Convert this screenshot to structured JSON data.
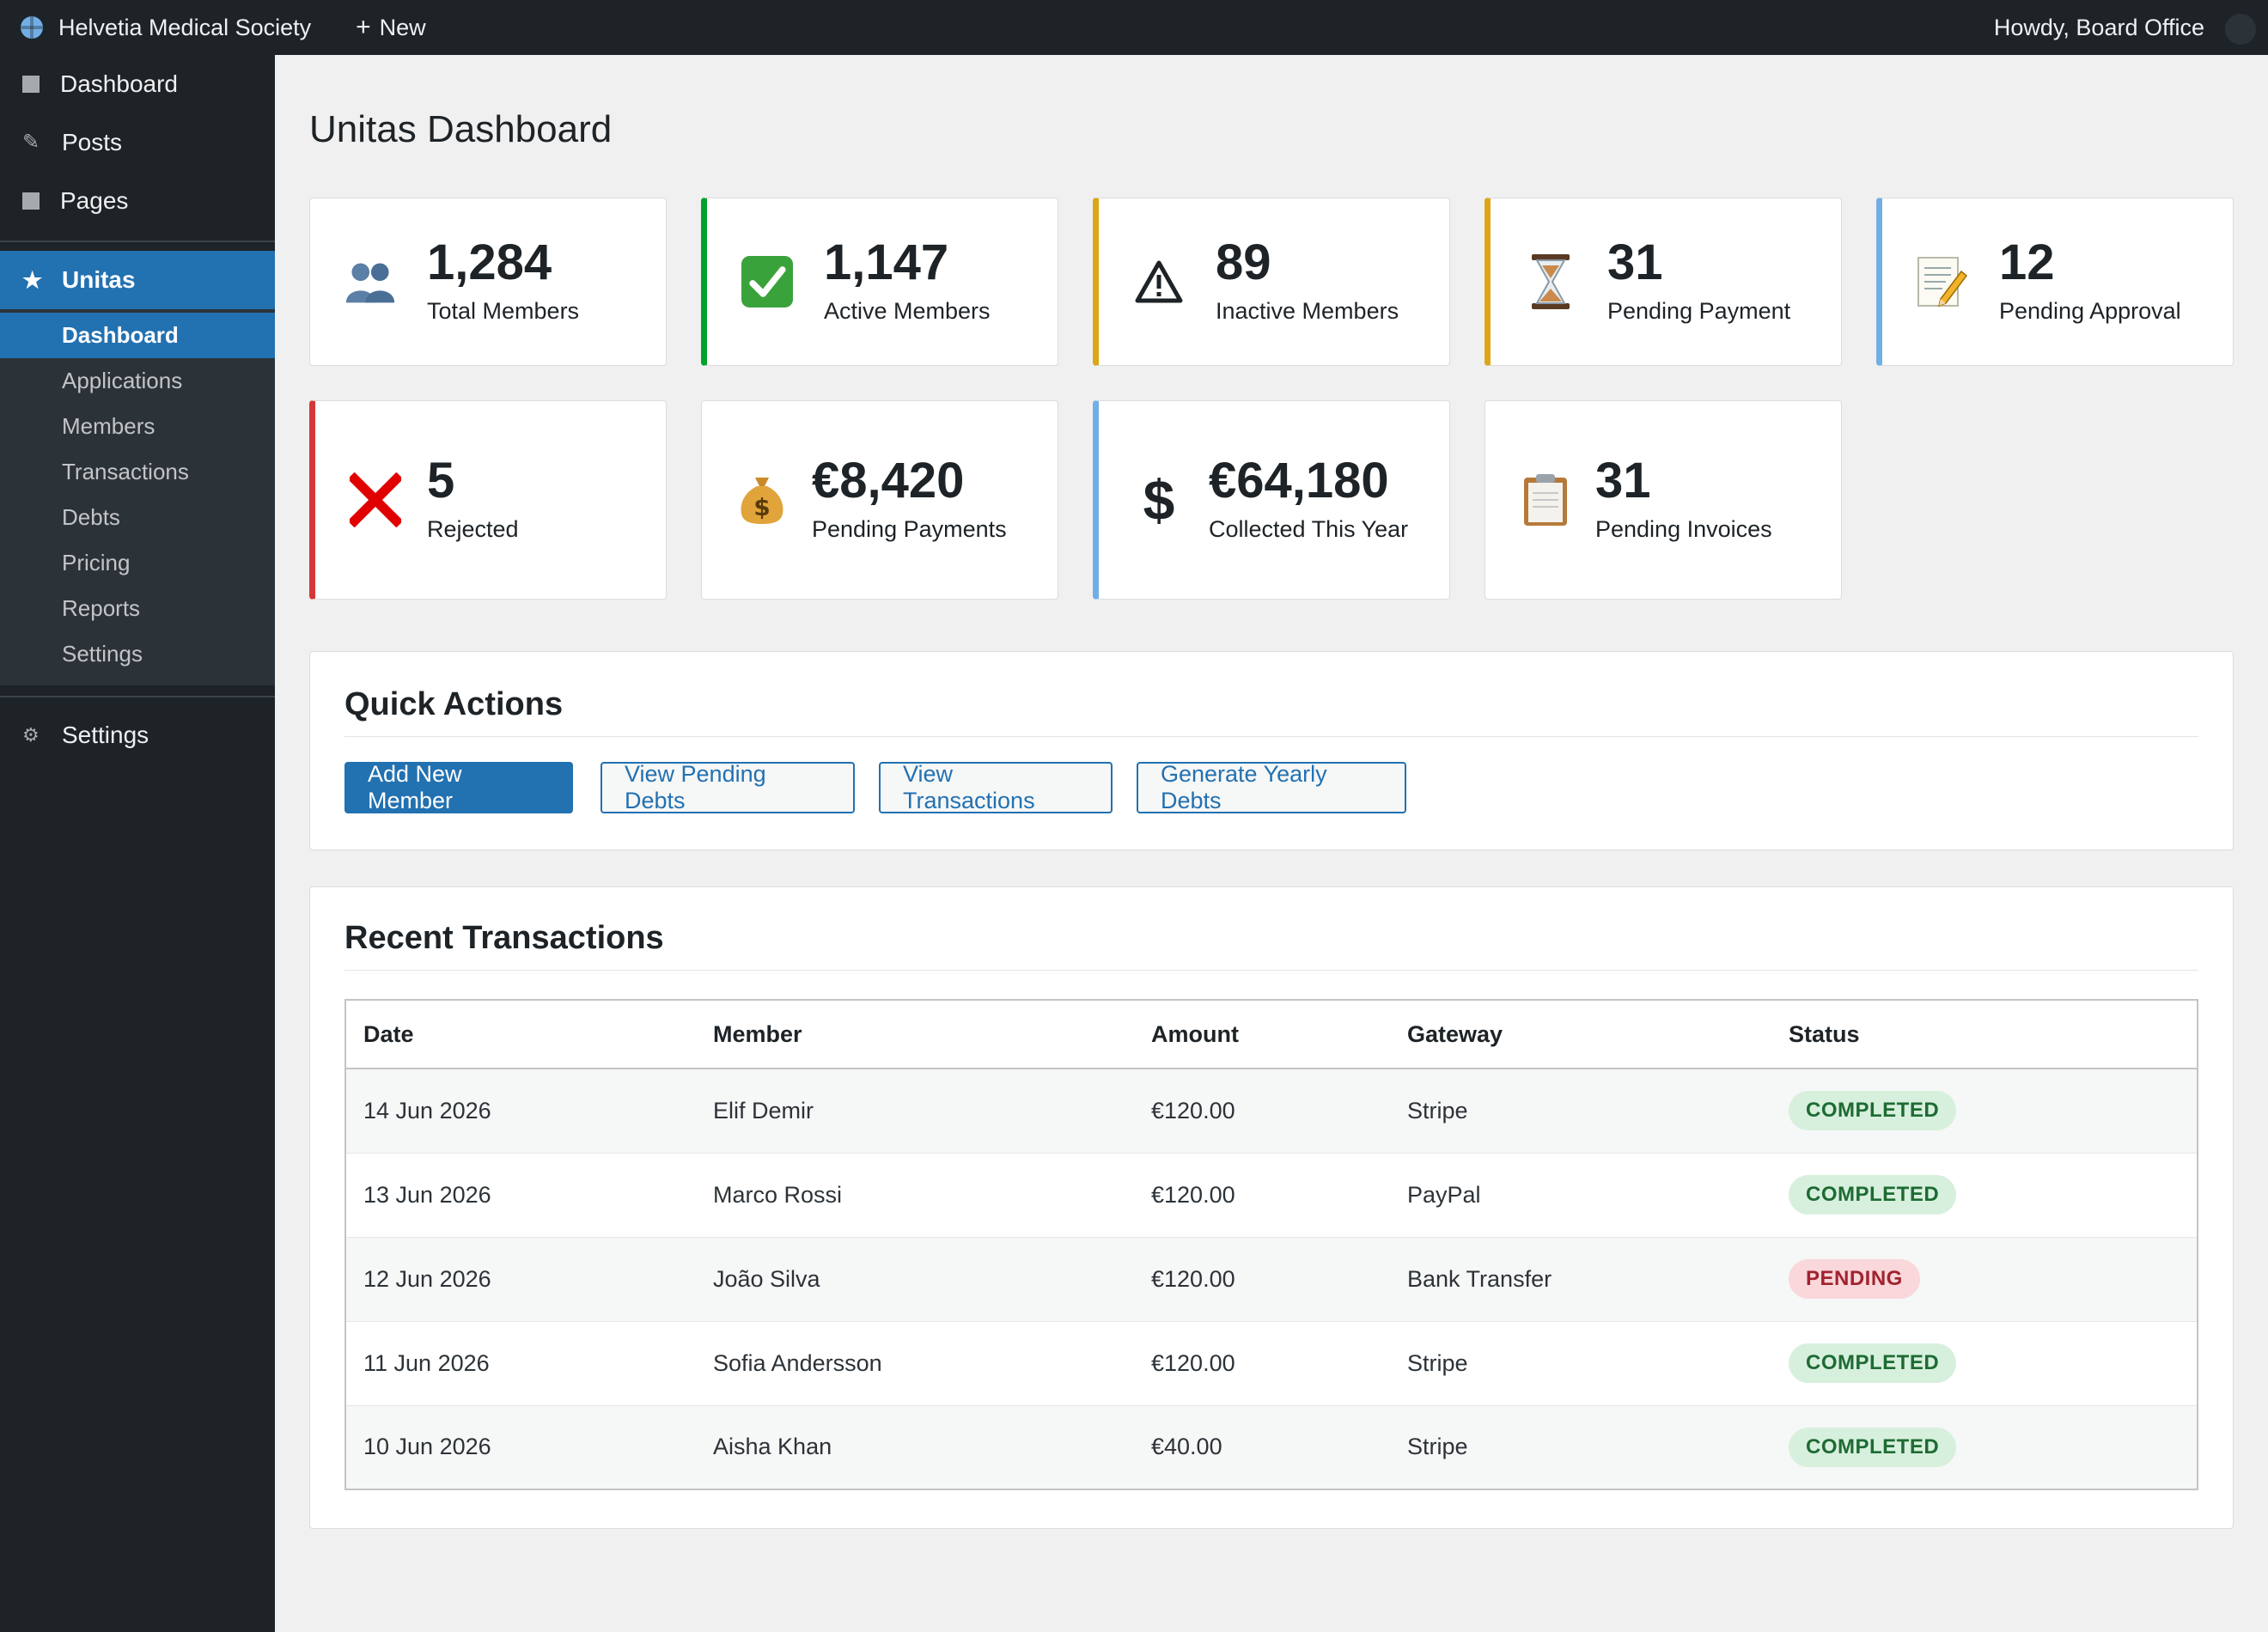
{
  "admin_bar": {
    "site_name": "Helvetia Medical Society",
    "new_label": "New",
    "new_icon": "+",
    "howdy": "Howdy, Board Office"
  },
  "sidebar": {
    "top_items": [
      {
        "label": "Dashboard",
        "icon": "dashboard-icon"
      },
      {
        "label": "Posts",
        "icon": "pin-icon"
      },
      {
        "label": "Pages",
        "icon": "page-icon"
      }
    ],
    "current_menu": {
      "label": "Unitas",
      "icon": "star-icon"
    },
    "submenu": [
      {
        "label": "Dashboard",
        "current": true
      },
      {
        "label": "Applications"
      },
      {
        "label": "Members"
      },
      {
        "label": "Transactions"
      },
      {
        "label": "Debts"
      },
      {
        "label": "Pricing"
      },
      {
        "label": "Reports"
      },
      {
        "label": "Settings"
      }
    ],
    "bottom_item": {
      "label": "Settings",
      "icon": "gear-icon"
    }
  },
  "page": {
    "title": "Unitas Dashboard"
  },
  "stats_row1": [
    {
      "value": "1,284",
      "label": "Total Members",
      "icon": "members-icon",
      "accent": null
    },
    {
      "value": "1,147",
      "label": "Active Members",
      "icon": "checkmark-icon",
      "accent": "#00a32a"
    },
    {
      "value": "89",
      "label": "Inactive Members",
      "icon": "warning-icon",
      "accent": "#dba617"
    },
    {
      "value": "31",
      "label": "Pending Payment",
      "icon": "hourglass-icon",
      "accent": "#dba617"
    },
    {
      "value": "12",
      "label": "Pending Approval",
      "icon": "memo-icon",
      "accent": "#72aee6"
    }
  ],
  "stats_row2": [
    {
      "value": "5",
      "label": "Rejected",
      "icon": "cross-icon",
      "accent": "#d63638"
    },
    {
      "value": "€8,420",
      "label": "Pending Payments",
      "icon": "money-bag-icon",
      "accent": null
    },
    {
      "value": "€64,180",
      "label": "Collected This Year",
      "icon": "dollar-icon",
      "accent": "#72aee6"
    },
    {
      "value": "31",
      "label": "Pending Invoices",
      "icon": "clipboard-icon",
      "accent": null
    }
  ],
  "quick_actions": {
    "title": "Quick Actions",
    "buttons": [
      "Add New Member",
      "View Pending Debts",
      "View Transactions",
      "Generate Yearly Debts"
    ]
  },
  "recent_transactions": {
    "title": "Recent Transactions",
    "columns": [
      "Date",
      "Member",
      "Amount",
      "Gateway",
      "Status"
    ],
    "rows": [
      {
        "date": "14 Jun 2026",
        "member": "Elif Demir",
        "amount": "€120.00",
        "gateway": "Stripe",
        "status": "COMPLETED"
      },
      {
        "date": "13 Jun 2026",
        "member": "Marco Rossi",
        "amount": "€120.00",
        "gateway": "PayPal",
        "status": "COMPLETED"
      },
      {
        "date": "12 Jun 2026",
        "member": "João Silva",
        "amount": "€120.00",
        "gateway": "Bank Transfer",
        "status": "PENDING"
      },
      {
        "date": "11 Jun 2026",
        "member": "Sofia Andersson",
        "amount": "€120.00",
        "gateway": "Stripe",
        "status": "COMPLETED"
      },
      {
        "date": "10 Jun 2026",
        "member": "Aisha Khan",
        "amount": "€40.00",
        "gateway": "Stripe",
        "status": "COMPLETED"
      }
    ]
  },
  "colors": {
    "primary": "#2271b1",
    "admin_bar": "#1d2327",
    "completed": "#1e6b34",
    "pending": "#a0232f"
  }
}
